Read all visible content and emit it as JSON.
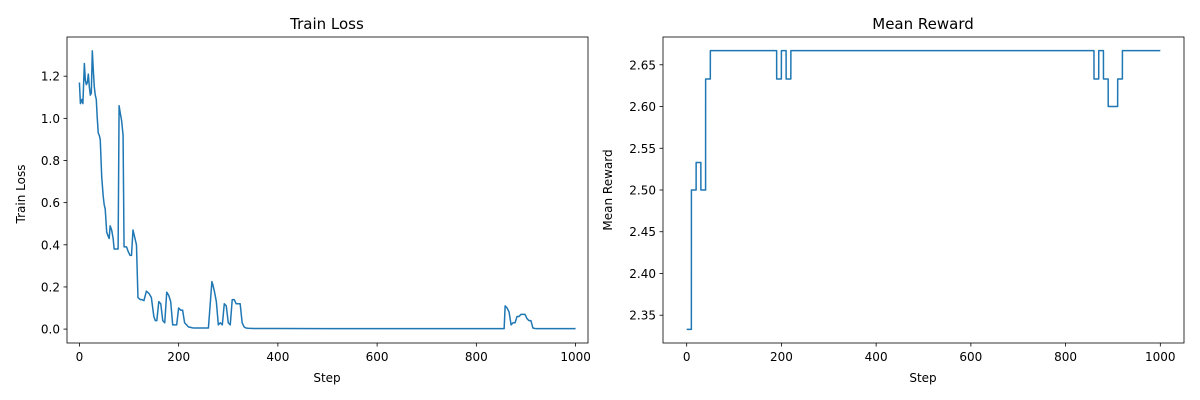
{
  "colors": {
    "line": "#1f77b4",
    "axes": "#000000",
    "background": "#ffffff"
  },
  "chart_data": [
    {
      "type": "line",
      "title": "Train Loss",
      "xlabel": "Step",
      "ylabel": "Train Loss",
      "xlim": [
        -25,
        1025
      ],
      "ylim": [
        -0.066,
        1.386
      ],
      "xticks": [
        0,
        200,
        400,
        600,
        800,
        1000
      ],
      "yticks": [
        0.0,
        0.2,
        0.4,
        0.6,
        0.8,
        1.0,
        1.2
      ],
      "ytick_labels": [
        "0.0",
        "0.2",
        "0.4",
        "0.6",
        "0.8",
        "1.0",
        "1.2"
      ],
      "grid": false,
      "series": [
        {
          "x": [
            0,
            2,
            5,
            7,
            10,
            12,
            14,
            16,
            18,
            20,
            22,
            24,
            26,
            28,
            30,
            32,
            34,
            36,
            38,
            40,
            42,
            45,
            48,
            50,
            52,
            55,
            58,
            60,
            62,
            65,
            68,
            70,
            72,
            75,
            78,
            80,
            82,
            85,
            88,
            90,
            92,
            95,
            98,
            100,
            102,
            105,
            108,
            110,
            112,
            115,
            118,
            120,
            123,
            126,
            130,
            135,
            140,
            145,
            150,
            153,
            156,
            160,
            164,
            168,
            172,
            176,
            180,
            184,
            188,
            192,
            196,
            200,
            204,
            208,
            212,
            216,
            220,
            224,
            228,
            232,
            236,
            240,
            250,
            260,
            267,
            269,
            272,
            276,
            280,
            284,
            288,
            292,
            296,
            300,
            304,
            308,
            312,
            316,
            320,
            324,
            328,
            332,
            336,
            340,
            350,
            400,
            500,
            600,
            700,
            800,
            856,
            858,
            862,
            866,
            870,
            874,
            878,
            882,
            886,
            890,
            894,
            898,
            902,
            906,
            910,
            914,
            918,
            922,
            926,
            930,
            940,
            1000
          ],
          "y": [
            1.17,
            1.07,
            1.09,
            1.07,
            1.26,
            1.18,
            1.16,
            1.17,
            1.21,
            1.15,
            1.11,
            1.12,
            1.32,
            1.23,
            1.15,
            1.11,
            1.09,
            1.0,
            0.93,
            0.92,
            0.9,
            0.72,
            0.63,
            0.59,
            0.57,
            0.46,
            0.44,
            0.43,
            0.49,
            0.47,
            0.43,
            0.38,
            0.38,
            0.38,
            0.38,
            1.06,
            1.03,
            0.99,
            0.92,
            0.39,
            0.39,
            0.39,
            0.37,
            0.36,
            0.35,
            0.35,
            0.47,
            0.45,
            0.43,
            0.4,
            0.15,
            0.145,
            0.14,
            0.14,
            0.135,
            0.18,
            0.17,
            0.15,
            0.06,
            0.04,
            0.04,
            0.13,
            0.12,
            0.04,
            0.03,
            0.175,
            0.16,
            0.13,
            0.02,
            0.02,
            0.02,
            0.1,
            0.09,
            0.09,
            0.03,
            0.02,
            0.01,
            0.008,
            0.006,
            0.005,
            0.005,
            0.005,
            0.005,
            0.005,
            0.225,
            0.21,
            0.18,
            0.13,
            0.02,
            0.03,
            0.02,
            0.12,
            0.11,
            0.03,
            0.02,
            0.14,
            0.14,
            0.12,
            0.12,
            0.12,
            0.03,
            0.01,
            0.005,
            0.004,
            0.003,
            0.003,
            0.002,
            0.002,
            0.002,
            0.002,
            0.002,
            0.11,
            0.1,
            0.08,
            0.02,
            0.03,
            0.03,
            0.06,
            0.06,
            0.07,
            0.07,
            0.07,
            0.05,
            0.04,
            0.04,
            0.005,
            0.003,
            0.002,
            0.002,
            0.002,
            0.002,
            0.002
          ]
        }
      ]
    },
    {
      "type": "line",
      "title": "Mean Reward",
      "xlabel": "Step",
      "ylabel": "Mean Reward",
      "xlim": [
        -50,
        1050
      ],
      "ylim": [
        2.3167,
        2.6833
      ],
      "xticks": [
        0,
        200,
        400,
        600,
        800,
        1000
      ],
      "yticks": [
        2.35,
        2.4,
        2.45,
        2.5,
        2.55,
        2.6,
        2.65
      ],
      "ytick_labels": [
        "2.35",
        "2.40",
        "2.45",
        "2.50",
        "2.55",
        "2.60",
        "2.65"
      ],
      "grid": false,
      "series": [
        {
          "x": [
            0,
            9.9,
            10,
            19.9,
            20,
            29.9,
            30,
            39.9,
            40,
            49.9,
            50,
            189.9,
            190,
            199.9,
            200,
            209.9,
            210,
            219.9,
            220,
            859.9,
            860,
            869.9,
            870,
            879.9,
            880,
            889.9,
            890,
            909.9,
            910,
            919.9,
            920,
            1000
          ],
          "y": [
            2.333,
            2.333,
            2.5,
            2.5,
            2.533,
            2.533,
            2.5,
            2.5,
            2.633,
            2.633,
            2.667,
            2.667,
            2.633,
            2.633,
            2.667,
            2.667,
            2.633,
            2.633,
            2.667,
            2.667,
            2.633,
            2.633,
            2.667,
            2.667,
            2.633,
            2.633,
            2.6,
            2.6,
            2.633,
            2.633,
            2.667,
            2.667
          ]
        }
      ]
    }
  ]
}
